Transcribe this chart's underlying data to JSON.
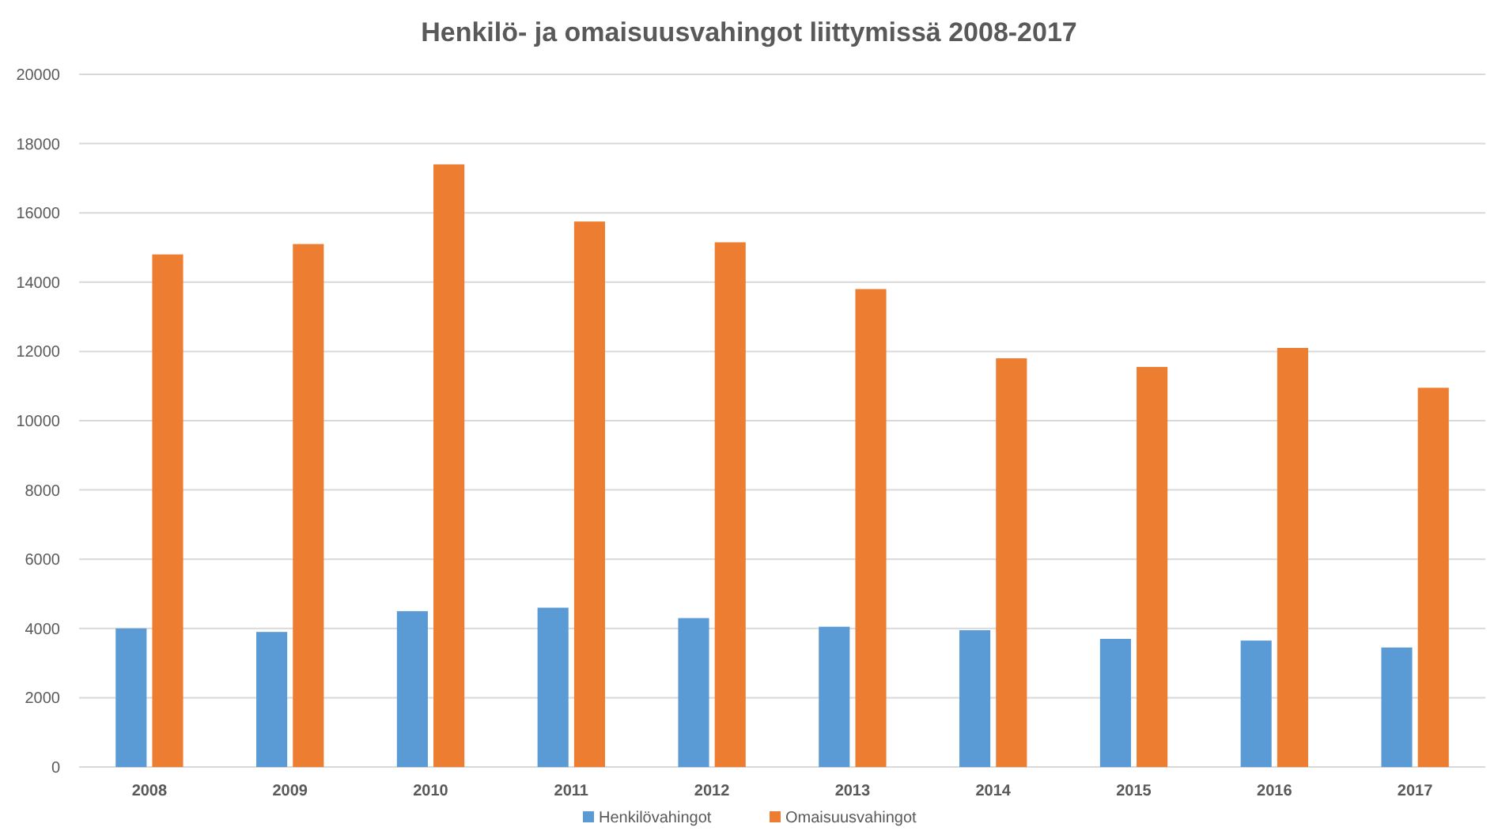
{
  "chart_data": {
    "type": "bar",
    "title": "Henkilö- ja omaisuusvahingot liittymissä 2008-2017",
    "categories": [
      "2008",
      "2009",
      "2010",
      "2011",
      "2012",
      "2013",
      "2014",
      "2015",
      "2016",
      "2017"
    ],
    "series": [
      {
        "name": "Henkilövahingot",
        "color": "#5b9bd5",
        "values": [
          4000,
          3900,
          4500,
          4600,
          4300,
          4050,
          3950,
          3700,
          3650,
          3450
        ]
      },
      {
        "name": "Omaisuusvahingot",
        "color": "#ed7d31",
        "values": [
          14800,
          15100,
          17400,
          15750,
          15150,
          13800,
          11800,
          11550,
          12100,
          10950
        ]
      }
    ],
    "ylim": [
      0,
      20000
    ],
    "yticks": [
      0,
      2000,
      4000,
      6000,
      8000,
      10000,
      12000,
      14000,
      16000,
      18000,
      20000
    ],
    "grid": "y",
    "legend": "bottom"
  }
}
